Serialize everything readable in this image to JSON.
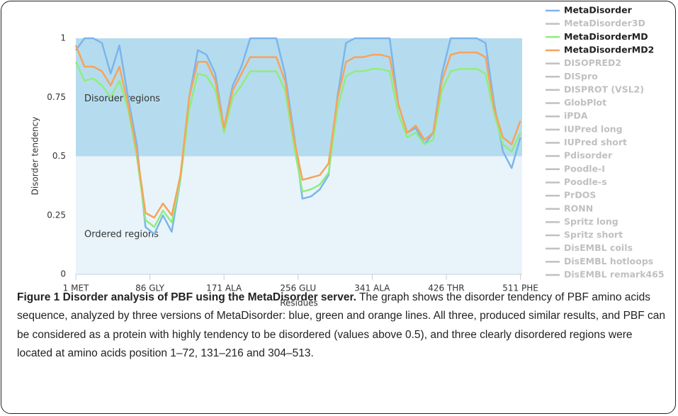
{
  "chart_data": {
    "type": "line",
    "ylabel": "Disorder tendency",
    "xlabel": "Residues",
    "x": [
      1,
      11,
      21,
      31,
      41,
      51,
      61,
      71,
      81,
      91,
      101,
      111,
      121,
      131,
      141,
      151,
      161,
      171,
      181,
      191,
      201,
      211,
      221,
      231,
      241,
      251,
      261,
      271,
      281,
      291,
      301,
      311,
      321,
      331,
      341,
      351,
      361,
      371,
      381,
      391,
      401,
      411,
      421,
      431,
      441,
      451,
      461,
      471,
      481,
      491,
      501,
      511
    ],
    "series": [
      {
        "name": "MetaDisorder",
        "color": "#7cb5ec",
        "values": [
          0.95,
          1,
          1,
          0.98,
          0.85,
          0.97,
          0.75,
          0.55,
          0.2,
          0.17,
          0.25,
          0.18,
          0.4,
          0.75,
          0.95,
          0.93,
          0.85,
          0.62,
          0.8,
          0.88,
          1,
          1,
          1,
          1,
          0.85,
          0.6,
          0.32,
          0.33,
          0.36,
          0.42,
          0.75,
          0.98,
          1,
          1,
          1,
          1,
          1,
          0.72,
          0.6,
          0.62,
          0.55,
          0.6,
          0.85,
          1,
          1,
          1,
          1,
          0.98,
          0.72,
          0.52,
          0.45,
          0.58
        ]
      },
      {
        "name": "MetaDisorderMD",
        "color": "#90ed7d",
        "values": [
          0.9,
          0.82,
          0.83,
          0.8,
          0.75,
          0.82,
          0.7,
          0.5,
          0.23,
          0.2,
          0.27,
          0.22,
          0.4,
          0.7,
          0.85,
          0.84,
          0.78,
          0.6,
          0.75,
          0.8,
          0.86,
          0.86,
          0.86,
          0.86,
          0.78,
          0.55,
          0.35,
          0.36,
          0.38,
          0.43,
          0.7,
          0.84,
          0.86,
          0.86,
          0.87,
          0.87,
          0.86,
          0.68,
          0.58,
          0.6,
          0.55,
          0.57,
          0.78,
          0.86,
          0.87,
          0.87,
          0.87,
          0.85,
          0.68,
          0.55,
          0.52,
          0.6
        ]
      },
      {
        "name": "MetaDisorderMD2",
        "color": "#f7a35c",
        "values": [
          0.97,
          0.88,
          0.88,
          0.86,
          0.8,
          0.88,
          0.72,
          0.52,
          0.26,
          0.24,
          0.3,
          0.25,
          0.42,
          0.75,
          0.9,
          0.9,
          0.82,
          0.62,
          0.78,
          0.85,
          0.92,
          0.92,
          0.92,
          0.92,
          0.82,
          0.58,
          0.4,
          0.41,
          0.42,
          0.47,
          0.74,
          0.9,
          0.92,
          0.92,
          0.93,
          0.93,
          0.92,
          0.72,
          0.6,
          0.63,
          0.57,
          0.6,
          0.82,
          0.93,
          0.94,
          0.94,
          0.94,
          0.92,
          0.7,
          0.58,
          0.55,
          0.65
        ]
      }
    ],
    "hidden_series": [
      "MetaDisorder3D",
      "DISOPRED2",
      "DISpro",
      "DISPROT (VSL2)",
      "GlobPlot",
      "iPDA",
      "IUPred long",
      "IUPred short",
      "Pdisorder",
      "Poodle-I",
      "Poodle-s",
      "PrDOS",
      "RONN",
      "Spritz long",
      "Spritz short",
      "DisEMBL coils",
      "DisEMBL hotloops",
      "DisEMBL remark465"
    ],
    "hidden_color": "#c0c0c0",
    "bands": [
      {
        "from": 0.5,
        "to": 1,
        "color": "#b5dcee",
        "label": "Disorder regions"
      },
      {
        "from": 0,
        "to": 0.5,
        "color": "#e9f4fa",
        "label": "Ordered regions"
      }
    ],
    "xlim": [
      1,
      513
    ],
    "xticks": [
      {
        "value": 1,
        "label": "1 MET"
      },
      {
        "value": 86,
        "label": "86 GLY"
      },
      {
        "value": 171,
        "label": "171 ALA"
      },
      {
        "value": 256,
        "label": "256 GLU"
      },
      {
        "value": 341,
        "label": "341 ALA"
      },
      {
        "value": 426,
        "label": "426 THR"
      },
      {
        "value": 511,
        "label": "511 PHE"
      }
    ],
    "ylim": [
      0,
      1
    ],
    "yticks": [
      0,
      0.25,
      0.5,
      0.75,
      1
    ]
  },
  "caption": {
    "title": "Figure 1 Disorder analysis of PBF using the MetaDisorder server.",
    "text": "The graph shows the disorder tendency of PBF amino acids sequence, analyzed by three versions of MetaDisorder: blue, green and orange lines. All three, produced similar results, and PBF can be considered as a protein with highly tendency to be disordered (values above 0.5), and three clearly disordered regions were located at amino acids position 1–72, 131–216 and 304–513."
  }
}
